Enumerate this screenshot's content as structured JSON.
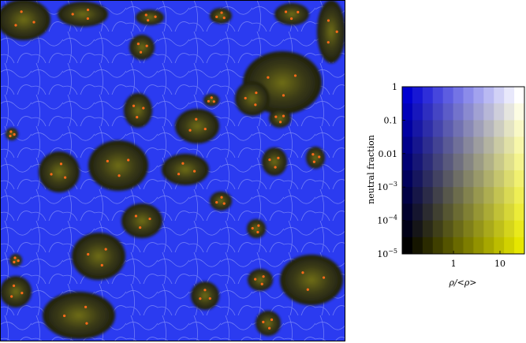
{
  "figure": {
    "map_colors": {
      "ionized": "#2b3bf0",
      "filament": "#b8c4ff",
      "neutral_region": "#2c2c12",
      "neutral_mid": "#8a8a1f",
      "dense_core": "#ff6a1a"
    }
  },
  "colorbar": {
    "ylabel": "neutral fraction",
    "xlabel": "ρ/<ρ>",
    "y_ticks": [
      {
        "label": "1",
        "sup": "",
        "frac": 1.0
      },
      {
        "label": "0.1",
        "sup": "",
        "frac": 0.8
      },
      {
        "label": "0.01",
        "sup": "",
        "frac": 0.6
      },
      {
        "label": "10",
        "sup": "−3",
        "frac": 0.4
      },
      {
        "label": "10",
        "sup": "−4",
        "frac": 0.2
      },
      {
        "label": "10",
        "sup": "−5",
        "frac": 0.0
      }
    ],
    "x_ticks": [
      {
        "label": "1",
        "frac": 0.42
      },
      {
        "label": "10",
        "frac": 0.8
      }
    ],
    "grid_cols": 12,
    "grid_rows": 10,
    "color_top_low": "#0000d0",
    "color_top_high": "#ffffff",
    "color_bottom_low": "#000000",
    "color_bottom_high": "#e6e600"
  }
}
